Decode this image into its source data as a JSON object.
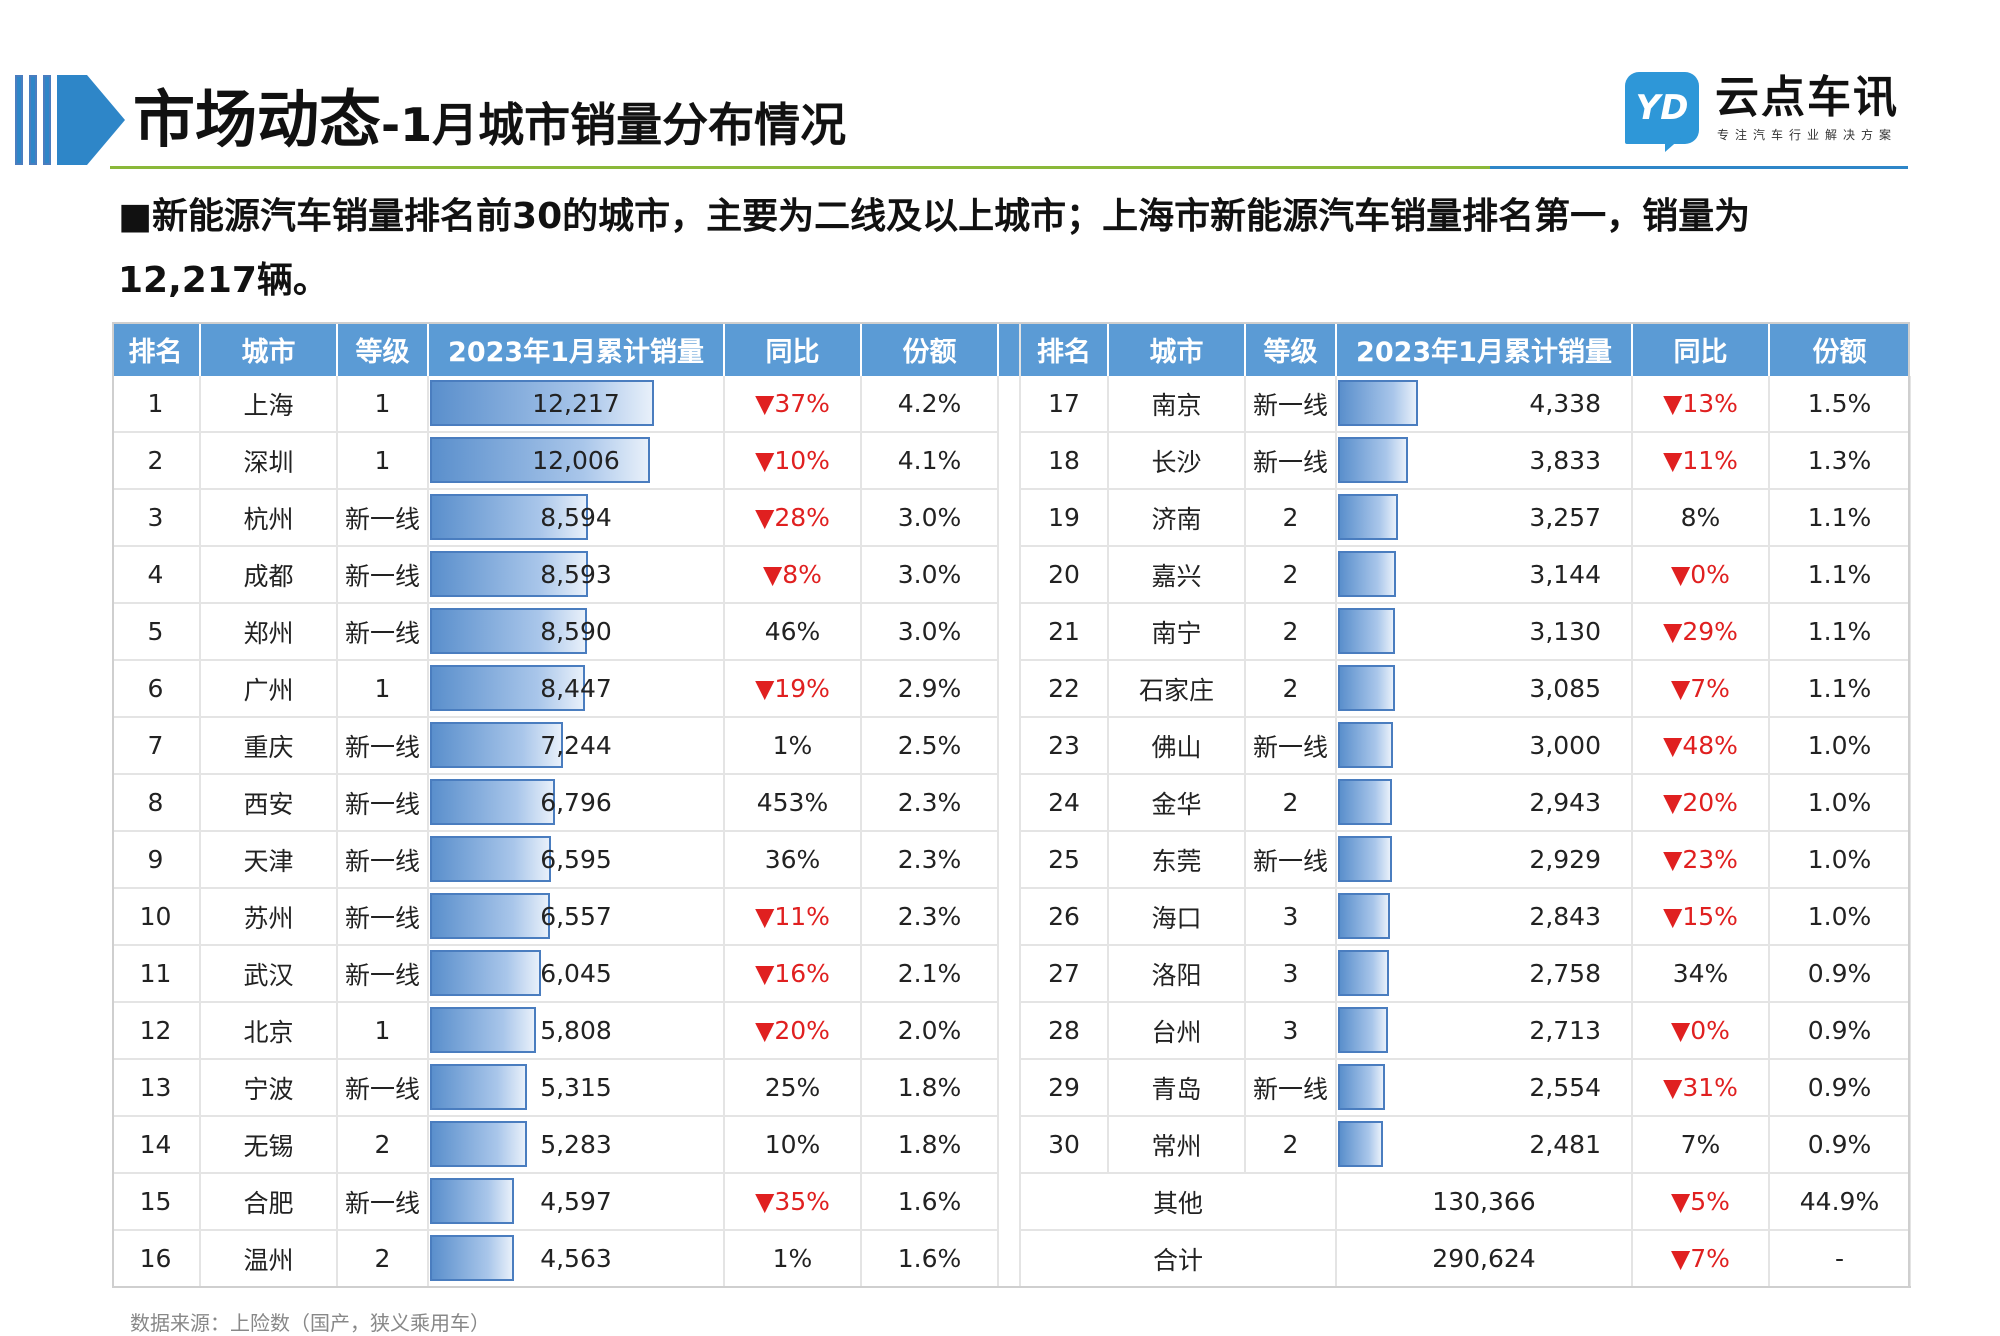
{
  "header": {
    "title_main": "市场动态",
    "title_sep": "-",
    "title_sub": "1月城市销量分布情况",
    "colors": {
      "accent": "#2e86c8",
      "green_line": "#8ab83a",
      "table_header": "#5b9bd5",
      "down_red": "#e02020"
    }
  },
  "logo": {
    "icon_text": "YD",
    "name": "云点车讯",
    "tagline": "专注汽车行业解决方案"
  },
  "summary": {
    "bullet": "■",
    "text": "新能源汽车销量排名前30的城市，主要为二线及以上城市；上海市新能源汽车销量排名第一，销量为12,217辆。"
  },
  "table": {
    "headers": [
      "排名",
      "城市",
      "等级",
      "2023年1月累计销量",
      "同比",
      "份额"
    ],
    "max_sales": 12217,
    "left_rows": [
      {
        "rank": "1",
        "city": "上海",
        "tier": "1",
        "sales": 12217,
        "sales_label": "12,217",
        "yoy": "▼37%",
        "down": true,
        "share": "4.2%"
      },
      {
        "rank": "2",
        "city": "深圳",
        "tier": "1",
        "sales": 12006,
        "sales_label": "12,006",
        "yoy": "▼10%",
        "down": true,
        "share": "4.1%"
      },
      {
        "rank": "3",
        "city": "杭州",
        "tier": "新一线",
        "sales": 8594,
        "sales_label": "8,594",
        "yoy": "▼28%",
        "down": true,
        "share": "3.0%"
      },
      {
        "rank": "4",
        "city": "成都",
        "tier": "新一线",
        "sales": 8593,
        "sales_label": "8,593",
        "yoy": "▼8%",
        "down": true,
        "share": "3.0%"
      },
      {
        "rank": "5",
        "city": "郑州",
        "tier": "新一线",
        "sales": 8590,
        "sales_label": "8,590",
        "yoy": "46%",
        "down": false,
        "share": "3.0%"
      },
      {
        "rank": "6",
        "city": "广州",
        "tier": "1",
        "sales": 8447,
        "sales_label": "8,447",
        "yoy": "▼19%",
        "down": true,
        "share": "2.9%"
      },
      {
        "rank": "7",
        "city": "重庆",
        "tier": "新一线",
        "sales": 7244,
        "sales_label": "7,244",
        "yoy": "1%",
        "down": false,
        "share": "2.5%"
      },
      {
        "rank": "8",
        "city": "西安",
        "tier": "新一线",
        "sales": 6796,
        "sales_label": "6,796",
        "yoy": "453%",
        "down": false,
        "share": "2.3%"
      },
      {
        "rank": "9",
        "city": "天津",
        "tier": "新一线",
        "sales": 6595,
        "sales_label": "6,595",
        "yoy": "36%",
        "down": false,
        "share": "2.3%"
      },
      {
        "rank": "10",
        "city": "苏州",
        "tier": "新一线",
        "sales": 6557,
        "sales_label": "6,557",
        "yoy": "▼11%",
        "down": true,
        "share": "2.3%"
      },
      {
        "rank": "11",
        "city": "武汉",
        "tier": "新一线",
        "sales": 6045,
        "sales_label": "6,045",
        "yoy": "▼16%",
        "down": true,
        "share": "2.1%"
      },
      {
        "rank": "12",
        "city": "北京",
        "tier": "1",
        "sales": 5808,
        "sales_label": "5,808",
        "yoy": "▼20%",
        "down": true,
        "share": "2.0%"
      },
      {
        "rank": "13",
        "city": "宁波",
        "tier": "新一线",
        "sales": 5315,
        "sales_label": "5,315",
        "yoy": "25%",
        "down": false,
        "share": "1.8%"
      },
      {
        "rank": "14",
        "city": "无锡",
        "tier": "2",
        "sales": 5283,
        "sales_label": "5,283",
        "yoy": "10%",
        "down": false,
        "share": "1.8%"
      },
      {
        "rank": "15",
        "city": "合肥",
        "tier": "新一线",
        "sales": 4597,
        "sales_label": "4,597",
        "yoy": "▼35%",
        "down": true,
        "share": "1.6%"
      },
      {
        "rank": "16",
        "city": "温州",
        "tier": "2",
        "sales": 4563,
        "sales_label": "4,563",
        "yoy": "1%",
        "down": false,
        "share": "1.6%"
      }
    ],
    "right_rows": [
      {
        "rank": "17",
        "city": "南京",
        "tier": "新一线",
        "sales": 4338,
        "sales_label": "4,338",
        "yoy": "▼13%",
        "down": true,
        "share": "1.5%"
      },
      {
        "rank": "18",
        "city": "长沙",
        "tier": "新一线",
        "sales": 3833,
        "sales_label": "3,833",
        "yoy": "▼11%",
        "down": true,
        "share": "1.3%"
      },
      {
        "rank": "19",
        "city": "济南",
        "tier": "2",
        "sales": 3257,
        "sales_label": "3,257",
        "yoy": "8%",
        "down": false,
        "share": "1.1%"
      },
      {
        "rank": "20",
        "city": "嘉兴",
        "tier": "2",
        "sales": 3144,
        "sales_label": "3,144",
        "yoy": "▼0%",
        "down": true,
        "share": "1.1%"
      },
      {
        "rank": "21",
        "city": "南宁",
        "tier": "2",
        "sales": 3130,
        "sales_label": "3,130",
        "yoy": "▼29%",
        "down": true,
        "share": "1.1%"
      },
      {
        "rank": "22",
        "city": "石家庄",
        "tier": "2",
        "sales": 3085,
        "sales_label": "3,085",
        "yoy": "▼7%",
        "down": true,
        "share": "1.1%"
      },
      {
        "rank": "23",
        "city": "佛山",
        "tier": "新一线",
        "sales": 3000,
        "sales_label": "3,000",
        "yoy": "▼48%",
        "down": true,
        "share": "1.0%"
      },
      {
        "rank": "24",
        "city": "金华",
        "tier": "2",
        "sales": 2943,
        "sales_label": "2,943",
        "yoy": "▼20%",
        "down": true,
        "share": "1.0%"
      },
      {
        "rank": "25",
        "city": "东莞",
        "tier": "新一线",
        "sales": 2929,
        "sales_label": "2,929",
        "yoy": "▼23%",
        "down": true,
        "share": "1.0%"
      },
      {
        "rank": "26",
        "city": "海口",
        "tier": "3",
        "sales": 2843,
        "sales_label": "2,843",
        "yoy": "▼15%",
        "down": true,
        "share": "1.0%"
      },
      {
        "rank": "27",
        "city": "洛阳",
        "tier": "3",
        "sales": 2758,
        "sales_label": "2,758",
        "yoy": "34%",
        "down": false,
        "share": "0.9%"
      },
      {
        "rank": "28",
        "city": "台州",
        "tier": "3",
        "sales": 2713,
        "sales_label": "2,713",
        "yoy": "▼0%",
        "down": true,
        "share": "0.9%"
      },
      {
        "rank": "29",
        "city": "青岛",
        "tier": "新一线",
        "sales": 2554,
        "sales_label": "2,554",
        "yoy": "▼31%",
        "down": true,
        "share": "0.9%"
      },
      {
        "rank": "30",
        "city": "常州",
        "tier": "2",
        "sales": 2481,
        "sales_label": "2,481",
        "yoy": "7%",
        "down": false,
        "share": "0.9%"
      }
    ],
    "summary_rows": [
      {
        "label": "其他",
        "sales_label": "130,366",
        "yoy": "▼5%",
        "down": true,
        "share": "44.9%"
      },
      {
        "label": "合计",
        "sales_label": "290,624",
        "yoy": "▼7%",
        "down": true,
        "share": "-"
      }
    ]
  },
  "source": "数据来源：上险数（国产，狭义乘用车）"
}
